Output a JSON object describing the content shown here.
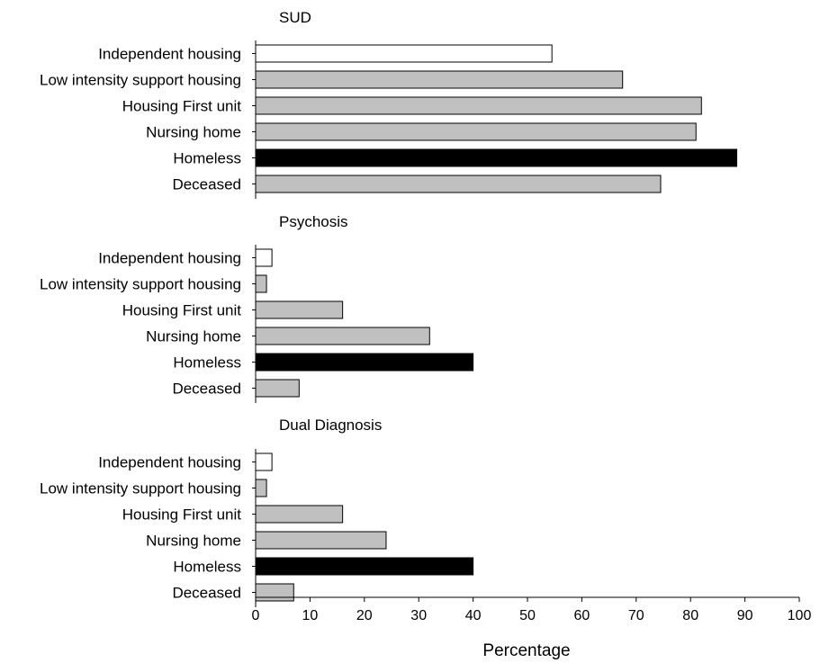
{
  "chart_data": {
    "type": "bar",
    "orientation": "horizontal",
    "xlabel": "Percentage",
    "xlim": [
      0,
      100
    ],
    "xticks": [
      0,
      10,
      20,
      30,
      40,
      50,
      60,
      70,
      80,
      90,
      100
    ],
    "grid": false,
    "categories": [
      "Independent housing",
      "Low intensity support housing",
      "Housing First unit",
      "Nursing home",
      "Homeless",
      "Deceased"
    ],
    "bar_colors": [
      "#ffffff",
      "#c0c0c0",
      "#c0c0c0",
      "#c0c0c0",
      "#000000",
      "#c0c0c0"
    ],
    "panels": [
      {
        "title": "SUD",
        "values": [
          54.5,
          67.5,
          82,
          81,
          88.5,
          74.5
        ]
      },
      {
        "title": "Psychosis",
        "values": [
          3,
          2,
          16,
          32,
          40,
          8
        ]
      },
      {
        "title": "Dual Diagnosis",
        "values": [
          3,
          2,
          16,
          24,
          40,
          7
        ]
      }
    ]
  }
}
